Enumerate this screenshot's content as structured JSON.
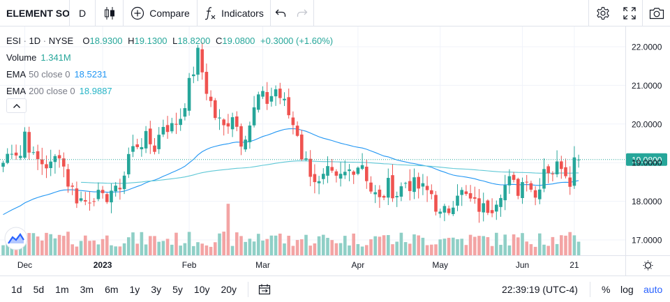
{
  "toolbar": {
    "symbol": "ELEMENT SOLUTIONS",
    "interval": "D",
    "compare_label": "Compare",
    "indicators_label": "Indicators",
    "icons": [
      "candles-icon",
      "plus-circle-icon",
      "function-icon",
      "undo-icon",
      "redo-icon",
      "gear-icon",
      "fullscreen-icon",
      "camera-icon"
    ]
  },
  "legend": {
    "symbol": "ESI",
    "interval": "1D",
    "exchange": "NYSE",
    "open_label": "O",
    "open": "18.9300",
    "high_label": "H",
    "high": "19.1300",
    "low_label": "L",
    "low": "18.8200",
    "close_label": "C",
    "close": "19.0800",
    "change": "+0.3000 (+1.60%)",
    "volume_label": "Volume",
    "volume": "1.341M",
    "ema50_label": "EMA",
    "ema50_params": "50 close 0",
    "ema50_value": "18.5231",
    "ema200_label": "EMA",
    "ema200_params": "200 close 0",
    "ema200_value": "18.9887"
  },
  "colors": {
    "up": "#26a69a",
    "down": "#ef5350",
    "up_volume": "#8fcfc6",
    "down_volume": "#f3a4a4",
    "ema50": "#2196f3",
    "ema200": "#5fc8d6",
    "grid": "#f0f3fa",
    "last_price_bg": "#26a69a"
  },
  "chart_data": {
    "type": "candlestick",
    "title": "ESI 1D NYSE",
    "ylim": [
      16.6,
      22.5
    ],
    "y_ticks": [
      "22.0000",
      "21.0000",
      "20.0000",
      "19.0000",
      "18.0000",
      "17.0000"
    ],
    "y_tick_values": [
      22,
      21,
      20,
      19,
      18,
      17
    ],
    "x_ticks": [
      "Dec",
      "2023",
      "Feb",
      "Mar",
      "Apr",
      "May",
      "Jun",
      "21"
    ],
    "x_tick_index": [
      5,
      23,
      43,
      60,
      82,
      101,
      120,
      132
    ],
    "last_price": "19.0800",
    "last_price_value": 19.08,
    "candles_anchor": [
      [
        0,
        19.0
      ],
      [
        2,
        19.4
      ],
      [
        4,
        19.2
      ],
      [
        5,
        19.8
      ],
      [
        7,
        19.1
      ],
      [
        9,
        19.0
      ],
      [
        11,
        18.9
      ],
      [
        13,
        19.3
      ],
      [
        15,
        18.5
      ],
      [
        17,
        18.1
      ],
      [
        19,
        18.0
      ],
      [
        21,
        18.2
      ],
      [
        23,
        18.0
      ],
      [
        25,
        18.3
      ],
      [
        26,
        18.2
      ],
      [
        28,
        18.7
      ],
      [
        29,
        19.2
      ],
      [
        31,
        19.5
      ],
      [
        33,
        19.6
      ],
      [
        35,
        19.4
      ],
      [
        37,
        20.0
      ],
      [
        39,
        19.9
      ],
      [
        41,
        20.2
      ],
      [
        43,
        21.0
      ],
      [
        45,
        21.8
      ],
      [
        47,
        20.9
      ],
      [
        49,
        20.2
      ],
      [
        51,
        19.9
      ],
      [
        53,
        20.3
      ],
      [
        55,
        19.6
      ],
      [
        57,
        20.0
      ],
      [
        59,
        20.7
      ],
      [
        61,
        20.6
      ],
      [
        63,
        20.9
      ],
      [
        65,
        20.5
      ],
      [
        67,
        20.0
      ],
      [
        68,
        19.8
      ],
      [
        69,
        19.2
      ],
      [
        71,
        18.8
      ],
      [
        73,
        18.4
      ],
      [
        75,
        18.7
      ],
      [
        77,
        18.5
      ],
      [
        79,
        18.7
      ],
      [
        81,
        18.9
      ],
      [
        83,
        19.0
      ],
      [
        85,
        18.3
      ],
      [
        87,
        18.0
      ],
      [
        89,
        18.4
      ],
      [
        91,
        18.2
      ],
      [
        93,
        18.5
      ],
      [
        95,
        18.4
      ],
      [
        97,
        18.3
      ],
      [
        99,
        18.2
      ],
      [
        101,
        17.6
      ],
      [
        103,
        17.8
      ],
      [
        105,
        18.3
      ],
      [
        107,
        18.1
      ],
      [
        109,
        17.9
      ],
      [
        111,
        17.8
      ],
      [
        113,
        17.9
      ],
      [
        115,
        18.3
      ],
      [
        117,
        18.5
      ],
      [
        119,
        18.3
      ],
      [
        121,
        18.7
      ],
      [
        123,
        18.1
      ],
      [
        125,
        18.9
      ],
      [
        127,
        18.8
      ],
      [
        129,
        19.0
      ],
      [
        131,
        18.6
      ],
      [
        132,
        19.08
      ]
    ],
    "volume_ylim": [
      0,
      3.5
    ]
  },
  "bottombar": {
    "ranges": [
      "1d",
      "5d",
      "1m",
      "3m",
      "6m",
      "1y",
      "3y",
      "5y",
      "10y",
      "20y"
    ],
    "time": "22:39:19 (UTC-4)",
    "percent": "%",
    "log": "log",
    "auto": "auto"
  }
}
